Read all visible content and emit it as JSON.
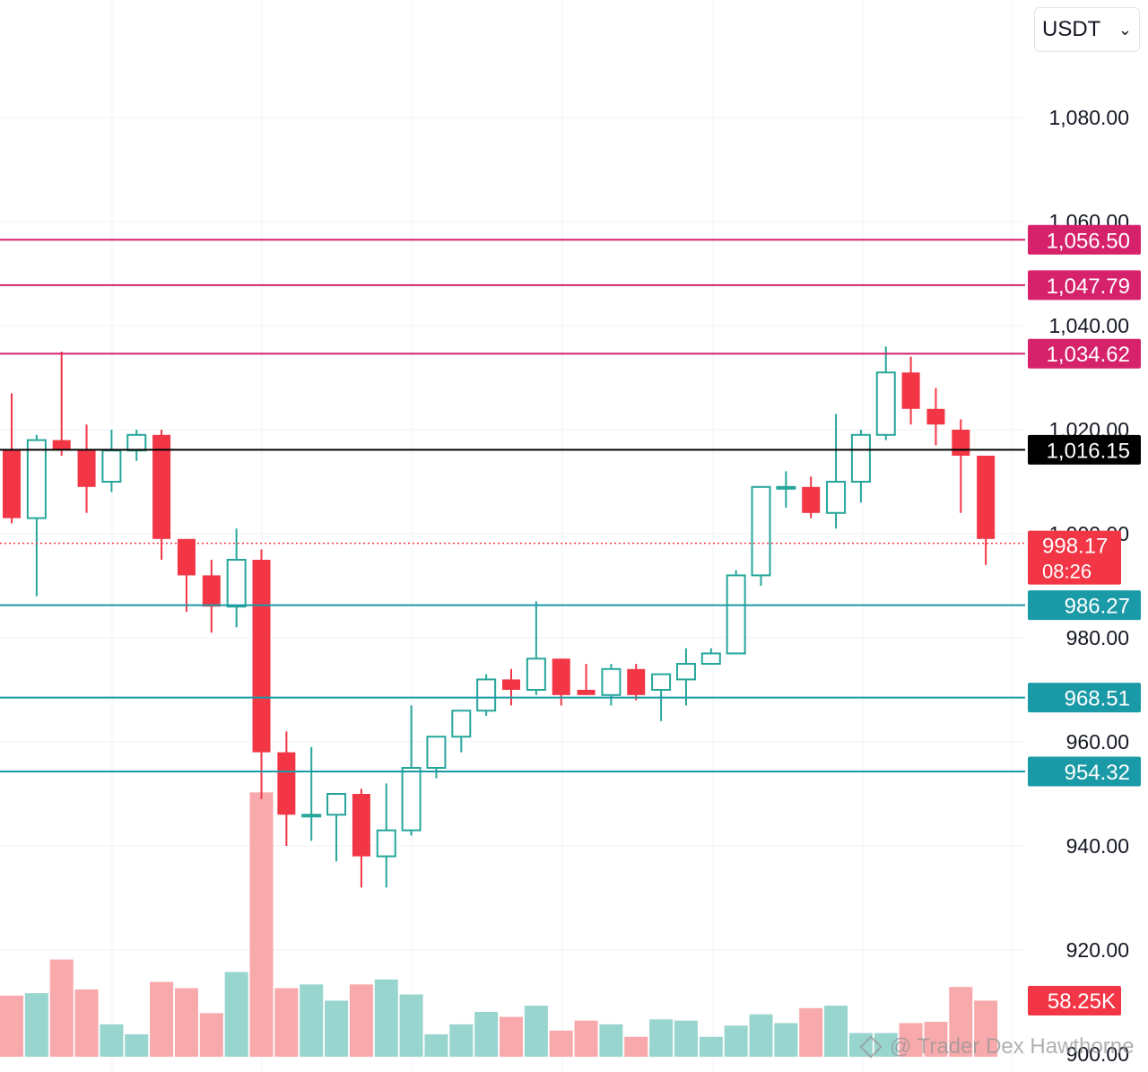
{
  "currency": {
    "selected": "USDT"
  },
  "watermark": {
    "text": "@ Trader Dex Hawthorne"
  },
  "colors": {
    "up": "#26a69a",
    "down": "#f23645",
    "vol_up": "#99d5cf",
    "vol_down": "#f8a9ac",
    "resistance": "#d6216b",
    "support": "#1a9aa6",
    "current_line": "#000000"
  },
  "chart_data": {
    "type": "candlestick",
    "ylim": [
      894,
      1098
    ],
    "y_ticks": [
      "1,080.00",
      "1,060.00",
      "1,040.00",
      "1,020.00",
      "1,000.00",
      "980.00",
      "960.00",
      "940.00",
      "920.00",
      "900.00"
    ],
    "grid": true,
    "candles": [
      {
        "o": 1016,
        "h": 1027,
        "l": 1002,
        "c": 1003
      },
      {
        "o": 1003,
        "h": 1019,
        "l": 988,
        "c": 1018
      },
      {
        "o": 1018,
        "h": 1035,
        "l": 1015,
        "c": 1016
      },
      {
        "o": 1016,
        "h": 1021,
        "l": 1004,
        "c": 1009
      },
      {
        "o": 1010,
        "h": 1020,
        "l": 1008,
        "c": 1016
      },
      {
        "o": 1016,
        "h": 1020,
        "l": 1014,
        "c": 1019
      },
      {
        "o": 1019,
        "h": 1020,
        "l": 995,
        "c": 999
      },
      {
        "o": 999,
        "h": 999,
        "l": 985,
        "c": 992
      },
      {
        "o": 992,
        "h": 995,
        "l": 981,
        "c": 986
      },
      {
        "o": 986,
        "h": 1001,
        "l": 982,
        "c": 995
      },
      {
        "o": 995,
        "h": 997,
        "l": 949,
        "c": 958
      },
      {
        "o": 958,
        "h": 962,
        "l": 940,
        "c": 946
      },
      {
        "o": 946,
        "h": 959,
        "l": 941,
        "c": 946
      },
      {
        "o": 946,
        "h": 950,
        "l": 937,
        "c": 950
      },
      {
        "o": 950,
        "h": 951,
        "l": 932,
        "c": 938
      },
      {
        "o": 938,
        "h": 952,
        "l": 932,
        "c": 943
      },
      {
        "o": 943,
        "h": 967,
        "l": 942,
        "c": 955
      },
      {
        "o": 955,
        "h": 961,
        "l": 953,
        "c": 961
      },
      {
        "o": 961,
        "h": 966,
        "l": 958,
        "c": 966
      },
      {
        "o": 966,
        "h": 973,
        "l": 965,
        "c": 972
      },
      {
        "o": 972,
        "h": 974,
        "l": 967,
        "c": 970
      },
      {
        "o": 970,
        "h": 987,
        "l": 969,
        "c": 976
      },
      {
        "o": 976,
        "h": 976,
        "l": 967,
        "c": 969
      },
      {
        "o": 970,
        "h": 975,
        "l": 969,
        "c": 969
      },
      {
        "o": 969,
        "h": 975,
        "l": 967,
        "c": 974
      },
      {
        "o": 974,
        "h": 975,
        "l": 968,
        "c": 969
      },
      {
        "o": 970,
        "h": 973,
        "l": 964,
        "c": 973
      },
      {
        "o": 972,
        "h": 978,
        "l": 967,
        "c": 975
      },
      {
        "o": 975,
        "h": 978,
        "l": 975,
        "c": 977
      },
      {
        "o": 977,
        "h": 993,
        "l": 977,
        "c": 992
      },
      {
        "o": 992,
        "h": 1009,
        "l": 990,
        "c": 1009
      },
      {
        "o": 1009,
        "h": 1012,
        "l": 1005,
        "c": 1009
      },
      {
        "o": 1009,
        "h": 1011,
        "l": 1003,
        "c": 1004
      },
      {
        "o": 1004,
        "h": 1023,
        "l": 1001,
        "c": 1010
      },
      {
        "o": 1010,
        "h": 1020,
        "l": 1006,
        "c": 1019
      },
      {
        "o": 1019,
        "h": 1036,
        "l": 1018,
        "c": 1031
      },
      {
        "o": 1031,
        "h": 1034,
        "l": 1021,
        "c": 1024
      },
      {
        "o": 1024,
        "h": 1028,
        "l": 1017,
        "c": 1021
      },
      {
        "o": 1020,
        "h": 1022,
        "l": 1004,
        "c": 1015
      },
      {
        "o": 1015,
        "h": 1015,
        "l": 994,
        "c": 999
      }
    ],
    "volumes": [
      0.49,
      0.51,
      0.78,
      0.54,
      0.26,
      0.18,
      0.6,
      0.55,
      0.35,
      0.68,
      2.12,
      0.55,
      0.58,
      0.45,
      0.58,
      0.62,
      0.5,
      0.18,
      0.26,
      0.36,
      0.32,
      0.41,
      0.21,
      0.29,
      0.26,
      0.16,
      0.3,
      0.29,
      0.16,
      0.25,
      0.34,
      0.27,
      0.39,
      0.41,
      0.19,
      0.19,
      0.27,
      0.28,
      0.56,
      0.45
    ],
    "levels": [
      {
        "price": 1056.5,
        "label": "1,056.50",
        "kind": "resistance"
      },
      {
        "price": 1047.79,
        "label": "1,047.79",
        "kind": "resistance"
      },
      {
        "price": 1034.62,
        "label": "1,034.62",
        "kind": "resistance"
      },
      {
        "price": 986.27,
        "label": "986.27",
        "kind": "support"
      },
      {
        "price": 968.51,
        "label": "968.51",
        "kind": "support"
      },
      {
        "price": 954.32,
        "label": "954.32",
        "kind": "support"
      }
    ],
    "reference_line": {
      "price": 1016.15,
      "label": "1,016.15"
    },
    "last_price": {
      "price": 998.17,
      "label": "998.17",
      "countdown": "08:26"
    },
    "volume_label": "58.25K"
  }
}
